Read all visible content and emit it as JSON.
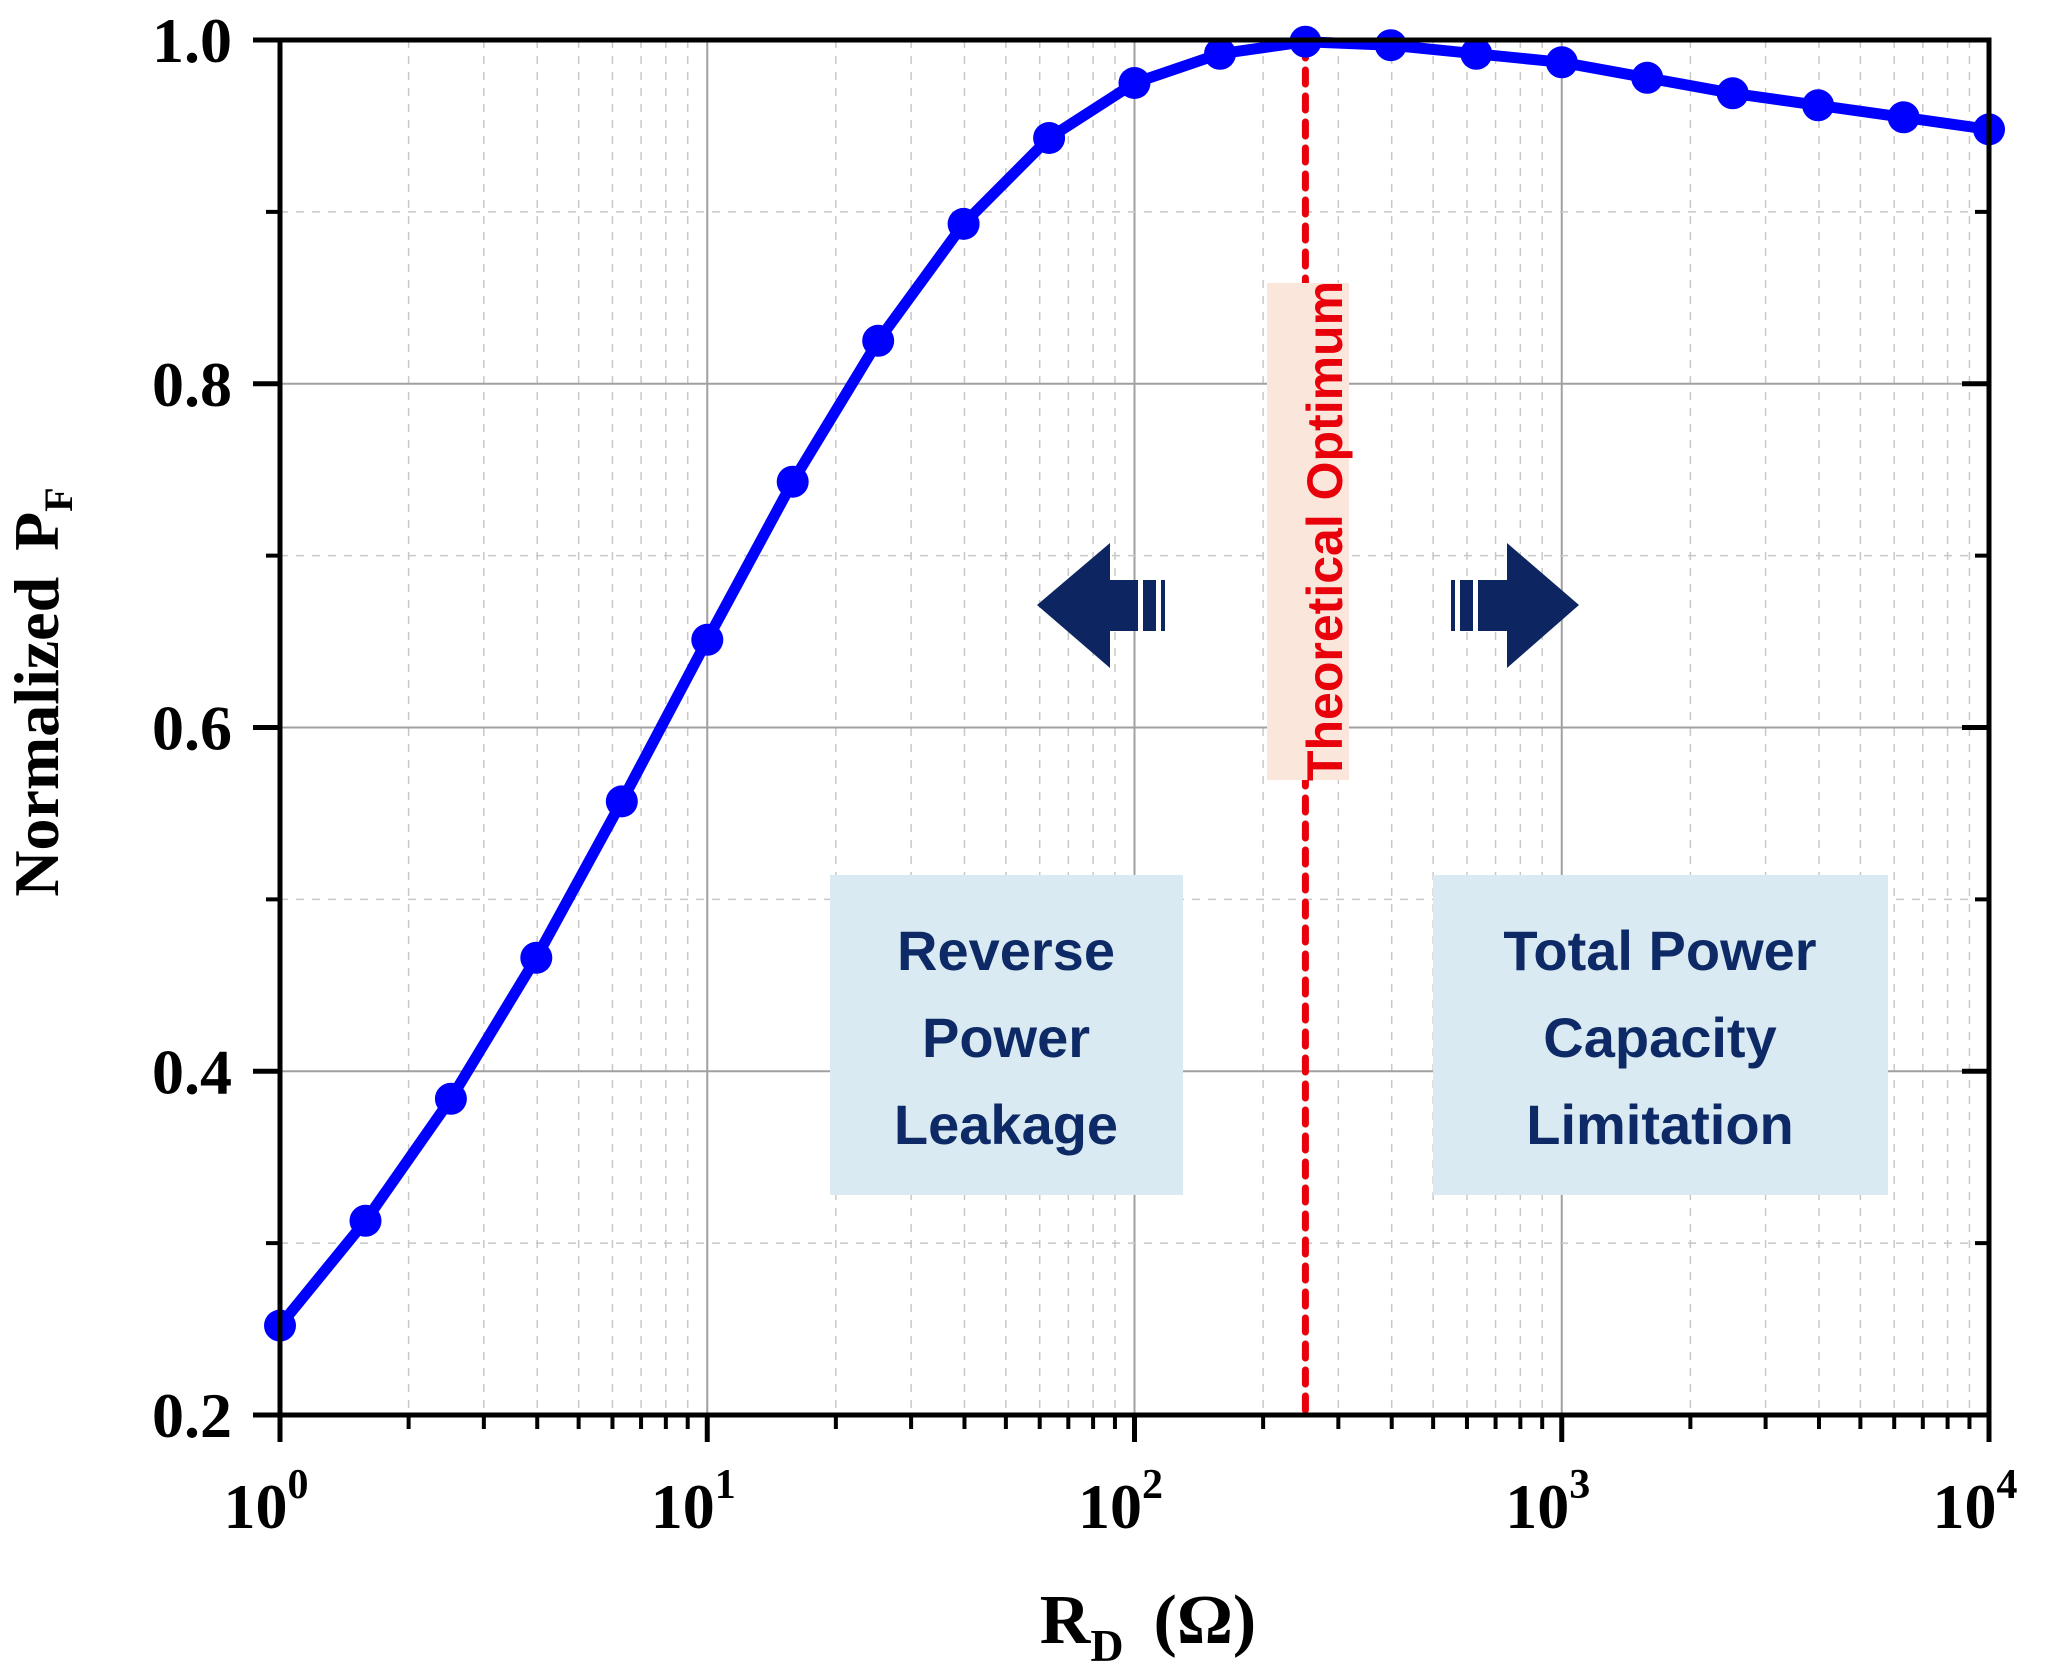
{
  "chart_data": {
    "type": "line",
    "title": "",
    "xlabel": "R_D (Ω)",
    "xlabel_parts": {
      "main": "R",
      "sub": "D",
      "unit": "(Ω)"
    },
    "ylabel": "Normalized P_F",
    "ylabel_parts": {
      "main": "Normalized",
      "p": "P",
      "sub": "F"
    },
    "xscale": "log",
    "xlim": [
      1,
      10000
    ],
    "ylim": [
      0.2,
      1.0
    ],
    "grid": true,
    "x_ticks": [
      {
        "base": "10",
        "exp": "0"
      },
      {
        "base": "10",
        "exp": "1"
      },
      {
        "base": "10",
        "exp": "2"
      },
      {
        "base": "10",
        "exp": "3"
      },
      {
        "base": "10",
        "exp": "4"
      }
    ],
    "y_ticks": [
      "0.2",
      "0.4",
      "0.6",
      "0.8",
      "1.0"
    ],
    "series": [
      {
        "name": "Normalized P_F",
        "color": "#0000ff",
        "x": [
          1,
          1.585,
          2.512,
          3.981,
          6.31,
          10,
          15.85,
          25.12,
          39.81,
          63.1,
          100,
          158.5,
          251.2,
          398.1,
          631,
          1000,
          1585,
          2512,
          3981,
          6310,
          10000
        ],
        "y": [
          0.252,
          0.313,
          0.384,
          0.466,
          0.557,
          0.651,
          0.743,
          0.825,
          0.893,
          0.943,
          0.975,
          0.992,
          0.999,
          0.997,
          0.992,
          0.987,
          0.978,
          0.969,
          0.962,
          0.955,
          0.948
        ]
      }
    ],
    "optimum_line": {
      "x": 251.2,
      "color": "#e8000b",
      "label": "Theoretical Optimum",
      "label_bg": "#fbe6dc"
    },
    "annotations": [
      {
        "id": "left-region",
        "lines": [
          "Reverse",
          "Power",
          "Leakage"
        ],
        "x_range": [
          20,
          130
        ],
        "y_range": [
          0.325,
          0.51
        ],
        "bg": "#daeaf2",
        "color": "#0d2a66"
      },
      {
        "id": "right-region",
        "lines": [
          "Total Power",
          "Capacity",
          "Limitation"
        ],
        "x_range": [
          500,
          6500
        ],
        "y_range": [
          0.325,
          0.51
        ],
        "bg": "#daeaf2",
        "color": "#0d2a66"
      }
    ],
    "arrows": [
      {
        "direction": "left",
        "color": "#0d2560"
      },
      {
        "direction": "right",
        "color": "#0d2560"
      }
    ]
  }
}
